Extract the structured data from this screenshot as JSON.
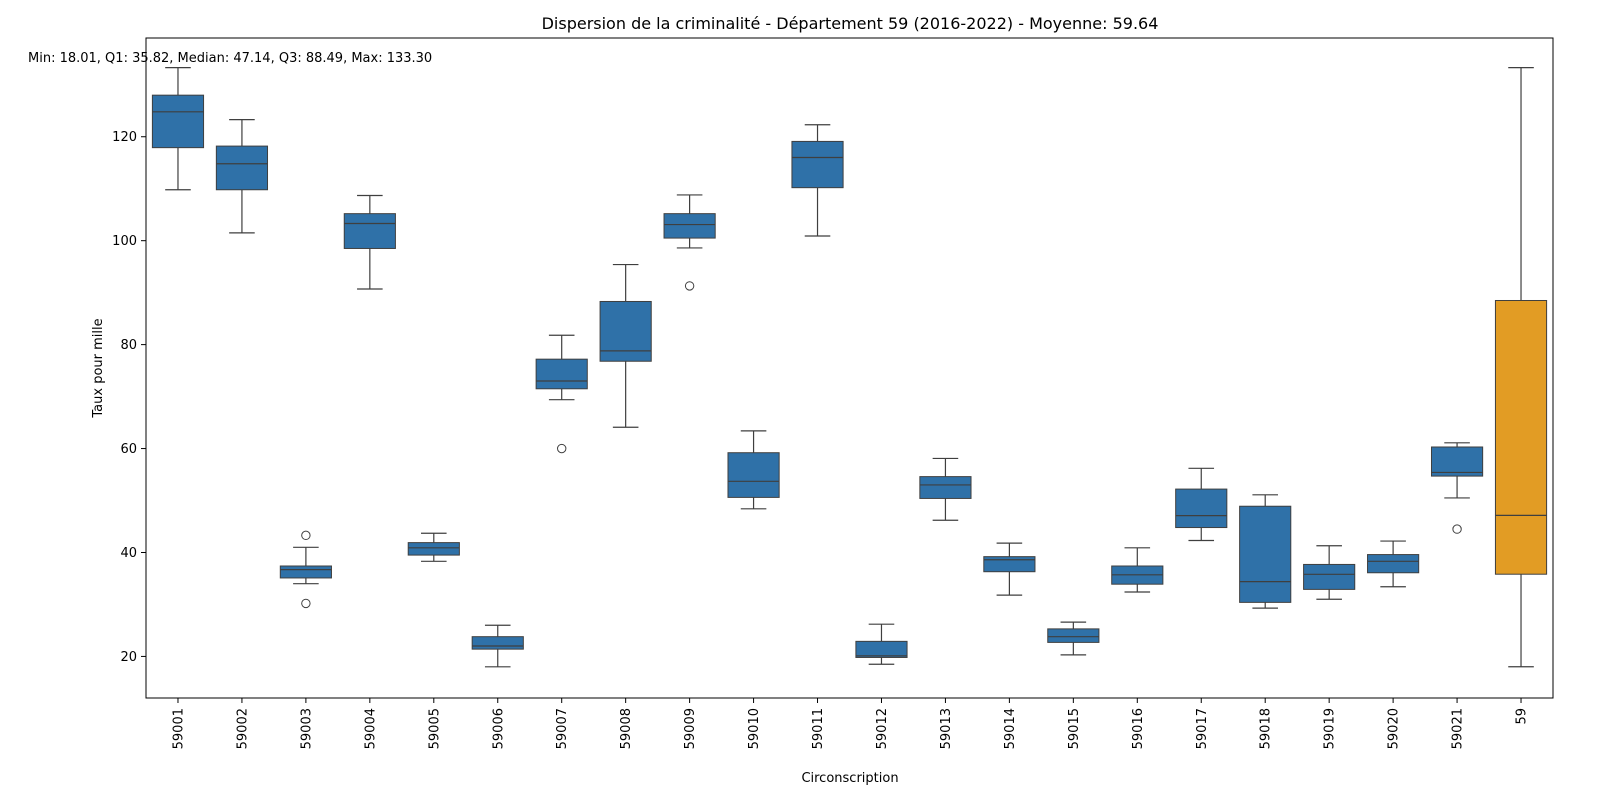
{
  "chart_data": {
    "type": "box",
    "title": "Dispersion de la criminalité - Département 59 (2016-2022) - Moyenne: 59.64",
    "annotation": "Min: 18.01, Q1: 35.82, Median: 47.14, Q3: 88.49, Max: 133.30",
    "xlabel": "Circonscription",
    "ylabel": "Taux pour mille",
    "ylim": [
      12,
      139
    ],
    "yticks": [
      20,
      40,
      60,
      80,
      100,
      120
    ],
    "grid": false,
    "colors": {
      "default": "#2f71a8",
      "highlight": "#e29c24",
      "line": "#3f3f3f"
    },
    "boxes": [
      {
        "label": "59001",
        "whislo": 109.8,
        "q1": 117.9,
        "med": 124.8,
        "q3": 128.0,
        "whishi": 133.3,
        "fliers": []
      },
      {
        "label": "59002",
        "whislo": 101.5,
        "q1": 109.8,
        "med": 114.8,
        "q3": 118.2,
        "whishi": 123.3,
        "fliers": []
      },
      {
        "label": "59003",
        "whislo": 34.0,
        "q1": 35.1,
        "med": 36.7,
        "q3": 37.4,
        "whishi": 41.0,
        "fliers": [
          43.3,
          30.2
        ]
      },
      {
        "label": "59004",
        "whislo": 90.7,
        "q1": 98.5,
        "med": 103.3,
        "q3": 105.2,
        "whishi": 108.7,
        "fliers": []
      },
      {
        "label": "59005",
        "whislo": 38.3,
        "q1": 39.5,
        "med": 40.9,
        "q3": 41.9,
        "whishi": 43.7,
        "fliers": []
      },
      {
        "label": "59006",
        "whislo": 18.0,
        "q1": 21.4,
        "med": 22.0,
        "q3": 23.8,
        "whishi": 26.0,
        "fliers": []
      },
      {
        "label": "59007",
        "whislo": 69.4,
        "q1": 71.5,
        "med": 73.0,
        "q3": 77.2,
        "whishi": 81.8,
        "fliers": [
          60.0
        ]
      },
      {
        "label": "59008",
        "whislo": 64.1,
        "q1": 76.8,
        "med": 78.8,
        "q3": 88.3,
        "whishi": 95.4,
        "fliers": []
      },
      {
        "label": "59009",
        "whislo": 98.6,
        "q1": 100.5,
        "med": 103.1,
        "q3": 105.2,
        "whishi": 108.8,
        "fliers": [
          91.3
        ]
      },
      {
        "label": "59010",
        "whislo": 48.4,
        "q1": 50.6,
        "med": 53.7,
        "q3": 59.2,
        "whishi": 63.4,
        "fliers": []
      },
      {
        "label": "59011",
        "whislo": 100.9,
        "q1": 110.2,
        "med": 116.0,
        "q3": 119.1,
        "whishi": 122.3,
        "fliers": []
      },
      {
        "label": "59012",
        "whislo": 18.5,
        "q1": 19.8,
        "med": 20.1,
        "q3": 22.9,
        "whishi": 26.2,
        "fliers": []
      },
      {
        "label": "59013",
        "whislo": 46.2,
        "q1": 50.4,
        "med": 53.0,
        "q3": 54.6,
        "whishi": 58.1,
        "fliers": []
      },
      {
        "label": "59014",
        "whislo": 31.8,
        "q1": 36.3,
        "med": 38.6,
        "q3": 39.2,
        "whishi": 41.8,
        "fliers": []
      },
      {
        "label": "59015",
        "whislo": 20.3,
        "q1": 22.7,
        "med": 23.8,
        "q3": 25.3,
        "whishi": 26.6,
        "fliers": []
      },
      {
        "label": "59016",
        "whislo": 32.4,
        "q1": 33.9,
        "med": 35.7,
        "q3": 37.4,
        "whishi": 40.9,
        "fliers": []
      },
      {
        "label": "59017",
        "whislo": 42.3,
        "q1": 44.8,
        "med": 47.1,
        "q3": 52.2,
        "whishi": 56.2,
        "fliers": []
      },
      {
        "label": "59018",
        "whislo": 29.3,
        "q1": 30.4,
        "med": 34.4,
        "q3": 48.9,
        "whishi": 51.1,
        "fliers": []
      },
      {
        "label": "59019",
        "whislo": 31.0,
        "q1": 32.9,
        "med": 35.8,
        "q3": 37.7,
        "whishi": 41.3,
        "fliers": []
      },
      {
        "label": "59020",
        "whislo": 33.4,
        "q1": 36.1,
        "med": 38.3,
        "q3": 39.6,
        "whishi": 42.2,
        "fliers": []
      },
      {
        "label": "59021",
        "whislo": 50.5,
        "q1": 54.7,
        "med": 55.4,
        "q3": 60.3,
        "whishi": 61.1,
        "fliers": [
          44.5
        ]
      },
      {
        "label": "59",
        "whislo": 18.01,
        "q1": 35.82,
        "med": 47.14,
        "q3": 88.49,
        "whishi": 133.3,
        "fliers": [],
        "highlight": true
      }
    ]
  }
}
